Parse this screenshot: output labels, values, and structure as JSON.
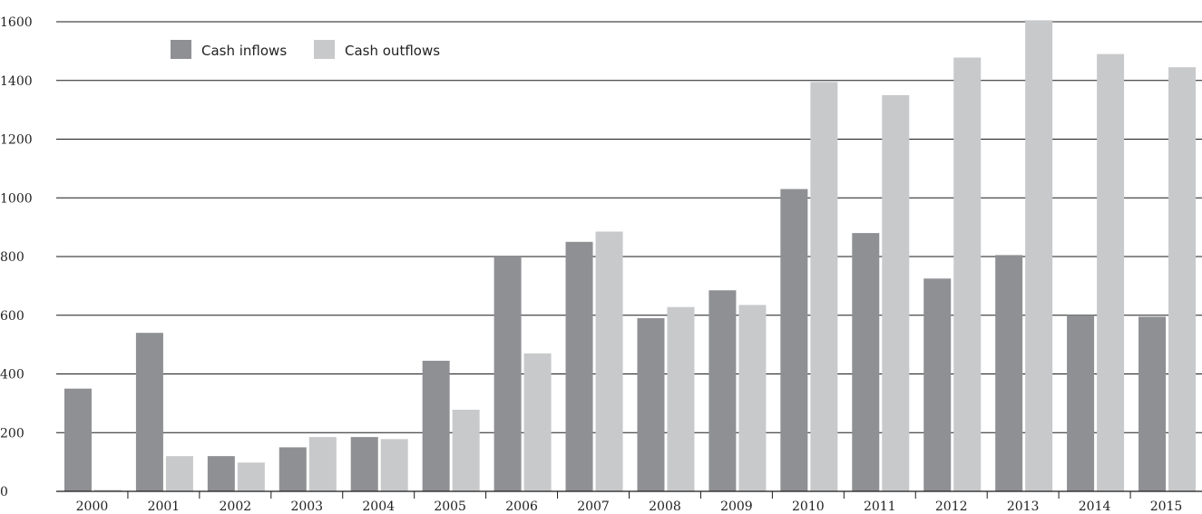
{
  "chart_data": {
    "type": "bar",
    "title": "",
    "xlabel": "",
    "ylabel": "",
    "categories": [
      "2000",
      "2001",
      "2002",
      "2003",
      "2004",
      "2005",
      "2006",
      "2007",
      "2008",
      "2009",
      "2010",
      "2011",
      "2012",
      "2013",
      "2014",
      "2015"
    ],
    "series": [
      {
        "name": "Cash inflows",
        "color": "#8f9094",
        "values": [
          350,
          540,
          120,
          150,
          185,
          445,
          800,
          850,
          590,
          685,
          1030,
          880,
          725,
          805,
          600,
          595
        ]
      },
      {
        "name": "Cash outflows",
        "color": "#c8c9cb",
        "values": [
          5,
          120,
          98,
          185,
          178,
          278,
          470,
          885,
          628,
          635,
          1395,
          1350,
          1478,
          1605,
          1490,
          1445
        ]
      }
    ],
    "ylim": [
      0,
      1600
    ],
    "yticks": [
      0,
      200,
      400,
      600,
      800,
      1000,
      1200,
      1400,
      1600
    ],
    "grid": true,
    "legend_position": "top-left"
  }
}
